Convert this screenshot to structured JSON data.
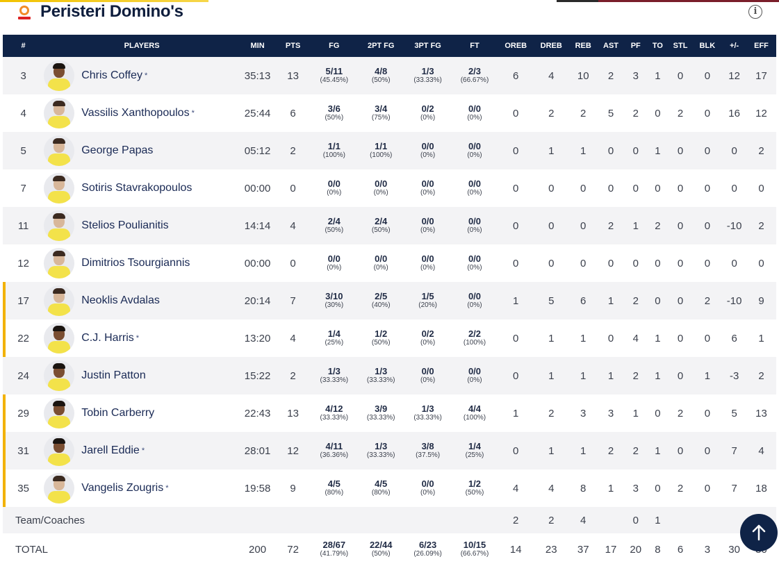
{
  "team": {
    "title": "Peristeri Domino's"
  },
  "columns": [
    "#",
    "PLAYERS",
    "MIN",
    "PTS",
    "FG",
    "2PT FG",
    "3PT FG",
    "FT",
    "OREB",
    "DREB",
    "REB",
    "AST",
    "PF",
    "TO",
    "STL",
    "BLK",
    "+/-",
    "EFF"
  ],
  "players": [
    {
      "num": "3",
      "name": "Chris Coffey",
      "starter": true,
      "bar": false,
      "dark": true,
      "min": "35:13",
      "pts": "13",
      "fg": [
        "5/11",
        "(45.45%)"
      ],
      "fg2": [
        "4/8",
        "(50%)"
      ],
      "fg3": [
        "1/3",
        "(33.33%)"
      ],
      "ft": [
        "2/3",
        "(66.67%)"
      ],
      "oreb": "6",
      "dreb": "4",
      "reb": "10",
      "ast": "2",
      "pf": "3",
      "to": "1",
      "stl": "0",
      "blk": "0",
      "pm": "12",
      "eff": "17"
    },
    {
      "num": "4",
      "name": "Vassilis Xanthopoulos",
      "starter": true,
      "bar": false,
      "dark": false,
      "min": "25:44",
      "pts": "6",
      "fg": [
        "3/6",
        "(50%)"
      ],
      "fg2": [
        "3/4",
        "(75%)"
      ],
      "fg3": [
        "0/2",
        "(0%)"
      ],
      "ft": [
        "0/0",
        "(0%)"
      ],
      "oreb": "0",
      "dreb": "2",
      "reb": "2",
      "ast": "5",
      "pf": "2",
      "to": "0",
      "stl": "2",
      "blk": "0",
      "pm": "16",
      "eff": "12"
    },
    {
      "num": "5",
      "name": "George Papas",
      "starter": false,
      "bar": false,
      "dark": false,
      "min": "05:12",
      "pts": "2",
      "fg": [
        "1/1",
        "(100%)"
      ],
      "fg2": [
        "1/1",
        "(100%)"
      ],
      "fg3": [
        "0/0",
        "(0%)"
      ],
      "ft": [
        "0/0",
        "(0%)"
      ],
      "oreb": "0",
      "dreb": "1",
      "reb": "1",
      "ast": "0",
      "pf": "0",
      "to": "1",
      "stl": "0",
      "blk": "0",
      "pm": "0",
      "eff": "2"
    },
    {
      "num": "7",
      "name": "Sotiris Stavrakopoulos",
      "starter": false,
      "bar": false,
      "dark": false,
      "min": "00:00",
      "pts": "0",
      "fg": [
        "0/0",
        "(0%)"
      ],
      "fg2": [
        "0/0",
        "(0%)"
      ],
      "fg3": [
        "0/0",
        "(0%)"
      ],
      "ft": [
        "0/0",
        "(0%)"
      ],
      "oreb": "0",
      "dreb": "0",
      "reb": "0",
      "ast": "0",
      "pf": "0",
      "to": "0",
      "stl": "0",
      "blk": "0",
      "pm": "0",
      "eff": "0"
    },
    {
      "num": "11",
      "name": "Stelios Poulianitis",
      "starter": false,
      "bar": false,
      "dark": false,
      "min": "14:14",
      "pts": "4",
      "fg": [
        "2/4",
        "(50%)"
      ],
      "fg2": [
        "2/4",
        "(50%)"
      ],
      "fg3": [
        "0/0",
        "(0%)"
      ],
      "ft": [
        "0/0",
        "(0%)"
      ],
      "oreb": "0",
      "dreb": "0",
      "reb": "0",
      "ast": "2",
      "pf": "1",
      "to": "2",
      "stl": "0",
      "blk": "0",
      "pm": "-10",
      "eff": "2"
    },
    {
      "num": "12",
      "name": "Dimitrios Tsourgiannis",
      "starter": false,
      "bar": false,
      "dark": false,
      "min": "00:00",
      "pts": "0",
      "fg": [
        "0/0",
        "(0%)"
      ],
      "fg2": [
        "0/0",
        "(0%)"
      ],
      "fg3": [
        "0/0",
        "(0%)"
      ],
      "ft": [
        "0/0",
        "(0%)"
      ],
      "oreb": "0",
      "dreb": "0",
      "reb": "0",
      "ast": "0",
      "pf": "0",
      "to": "0",
      "stl": "0",
      "blk": "0",
      "pm": "0",
      "eff": "0"
    },
    {
      "num": "17",
      "name": "Neoklis Avdalas",
      "starter": false,
      "bar": true,
      "dark": false,
      "min": "20:14",
      "pts": "7",
      "fg": [
        "3/10",
        "(30%)"
      ],
      "fg2": [
        "2/5",
        "(40%)"
      ],
      "fg3": [
        "1/5",
        "(20%)"
      ],
      "ft": [
        "0/0",
        "(0%)"
      ],
      "oreb": "1",
      "dreb": "5",
      "reb": "6",
      "ast": "1",
      "pf": "2",
      "to": "0",
      "stl": "0",
      "blk": "2",
      "pm": "-10",
      "eff": "9"
    },
    {
      "num": "22",
      "name": "C.J. Harris",
      "starter": true,
      "bar": true,
      "dark": true,
      "min": "13:20",
      "pts": "4",
      "fg": [
        "1/4",
        "(25%)"
      ],
      "fg2": [
        "1/2",
        "(50%)"
      ],
      "fg3": [
        "0/2",
        "(0%)"
      ],
      "ft": [
        "2/2",
        "(100%)"
      ],
      "oreb": "0",
      "dreb": "1",
      "reb": "1",
      "ast": "0",
      "pf": "4",
      "to": "1",
      "stl": "0",
      "blk": "0",
      "pm": "6",
      "eff": "1"
    },
    {
      "num": "24",
      "name": "Justin Patton",
      "starter": false,
      "bar": false,
      "dark": true,
      "min": "15:22",
      "pts": "2",
      "fg": [
        "1/3",
        "(33.33%)"
      ],
      "fg2": [
        "1/3",
        "(33.33%)"
      ],
      "fg3": [
        "0/0",
        "(0%)"
      ],
      "ft": [
        "0/0",
        "(0%)"
      ],
      "oreb": "0",
      "dreb": "1",
      "reb": "1",
      "ast": "1",
      "pf": "2",
      "to": "1",
      "stl": "0",
      "blk": "1",
      "pm": "-3",
      "eff": "2"
    },
    {
      "num": "29",
      "name": "Tobin Carberry",
      "starter": false,
      "bar": true,
      "dark": true,
      "min": "22:43",
      "pts": "13",
      "fg": [
        "4/12",
        "(33.33%)"
      ],
      "fg2": [
        "3/9",
        "(33.33%)"
      ],
      "fg3": [
        "1/3",
        "(33.33%)"
      ],
      "ft": [
        "4/4",
        "(100%)"
      ],
      "oreb": "1",
      "dreb": "2",
      "reb": "3",
      "ast": "3",
      "pf": "1",
      "to": "0",
      "stl": "2",
      "blk": "0",
      "pm": "5",
      "eff": "13"
    },
    {
      "num": "31",
      "name": "Jarell Eddie",
      "starter": true,
      "bar": true,
      "dark": true,
      "min": "28:01",
      "pts": "12",
      "fg": [
        "4/11",
        "(36.36%)"
      ],
      "fg2": [
        "1/3",
        "(33.33%)"
      ],
      "fg3": [
        "3/8",
        "(37.5%)"
      ],
      "ft": [
        "1/4",
        "(25%)"
      ],
      "oreb": "0",
      "dreb": "1",
      "reb": "1",
      "ast": "2",
      "pf": "2",
      "to": "1",
      "stl": "0",
      "blk": "0",
      "pm": "7",
      "eff": "4"
    },
    {
      "num": "35",
      "name": "Vangelis Zougris",
      "starter": true,
      "bar": true,
      "dark": false,
      "min": "19:58",
      "pts": "9",
      "fg": [
        "4/5",
        "(80%)"
      ],
      "fg2": [
        "4/5",
        "(80%)"
      ],
      "fg3": [
        "0/0",
        "(0%)"
      ],
      "ft": [
        "1/2",
        "(50%)"
      ],
      "oreb": "4",
      "dreb": "4",
      "reb": "8",
      "ast": "1",
      "pf": "3",
      "to": "0",
      "stl": "2",
      "blk": "0",
      "pm": "7",
      "eff": "18"
    }
  ],
  "starter_mark": "*",
  "team_row": {
    "label": "Team/Coaches",
    "oreb": "2",
    "dreb": "2",
    "reb": "4",
    "ast": "",
    "pf": "0",
    "to": "1",
    "stl": "",
    "blk": "",
    "pm": "",
    "eff": ""
  },
  "total_row": {
    "label": "TOTAL",
    "min": "200",
    "pts": "72",
    "fg": [
      "28/67",
      "(41.79%)"
    ],
    "fg2": [
      "22/44",
      "(50%)"
    ],
    "fg3": [
      "6/23",
      "(26.09%)"
    ],
    "ft": [
      "10/15",
      "(66.67%)"
    ],
    "oreb": "14",
    "dreb": "23",
    "reb": "37",
    "ast": "17",
    "pf": "20",
    "to": "8",
    "stl": "6",
    "blk": "3",
    "pm": "30",
    "eff": "80"
  },
  "icons": {
    "info": "info-icon",
    "scroll_top": "arrow-up-icon",
    "logo": "team-logo"
  },
  "colors": {
    "header_bg": "#0f2347",
    "accent_bar": "#f2b200",
    "name_color": "#1a2a55"
  }
}
